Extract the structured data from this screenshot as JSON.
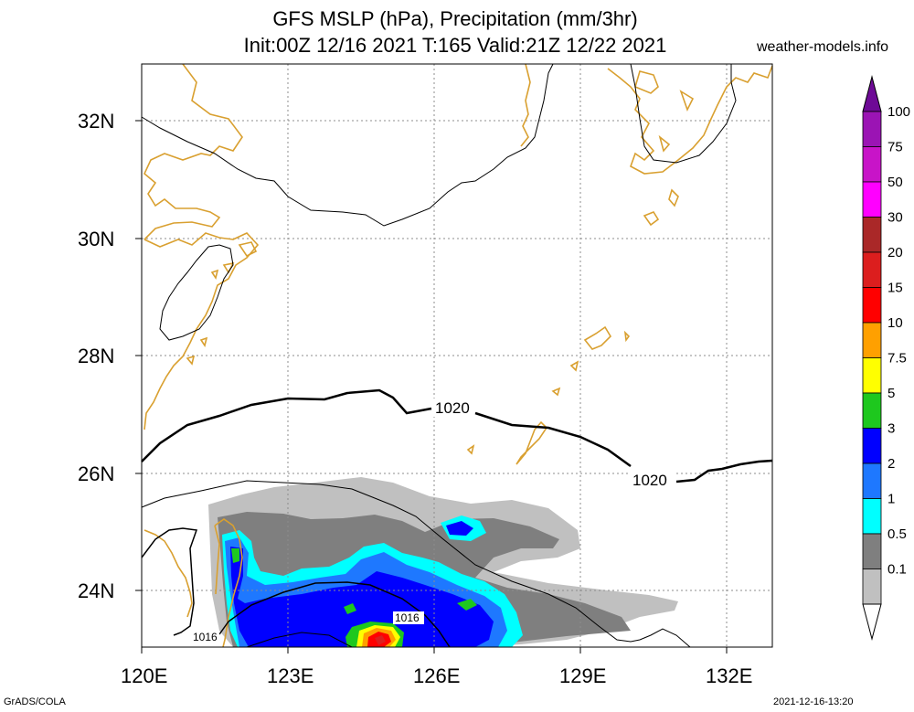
{
  "header": {
    "title_line1": "GFS MSLP (hPa), Precipitation (mm/3hr)",
    "title_line2": "Init:00Z 12/16 2021 T:165 Valid:21Z 12/22 2021",
    "site": "weather-models.info"
  },
  "footer": {
    "software": "GrADS/COLA",
    "timestamp": "2021-12-16-13:20"
  },
  "map": {
    "lat_labels": [
      "32N",
      "30N",
      "28N",
      "26N",
      "24N"
    ],
    "lon_labels": [
      "120E",
      "123E",
      "126E",
      "129E",
      "132E"
    ],
    "isobar_labels": [
      "1020",
      "1020",
      "1016",
      "1016"
    ],
    "coast_color": "#d9a030",
    "isobar_color": "#000000"
  },
  "colorbar": {
    "labels": [
      "100",
      "75",
      "50",
      "30",
      "20",
      "15",
      "10",
      "7.5",
      "5",
      "3",
      "2",
      "1",
      "0.5",
      "0.1"
    ],
    "colors": [
      "#6e0a96",
      "#9b14b4",
      "#c814c8",
      "#ff00ff",
      "#aa2828",
      "#dc1e1e",
      "#ff0000",
      "#ffa000",
      "#ffff00",
      "#1ec81e",
      "#0000ff",
      "#1e78ff",
      "#00ffff",
      "#7f7f7f",
      "#c0c0c0",
      "#ffffff"
    ]
  }
}
